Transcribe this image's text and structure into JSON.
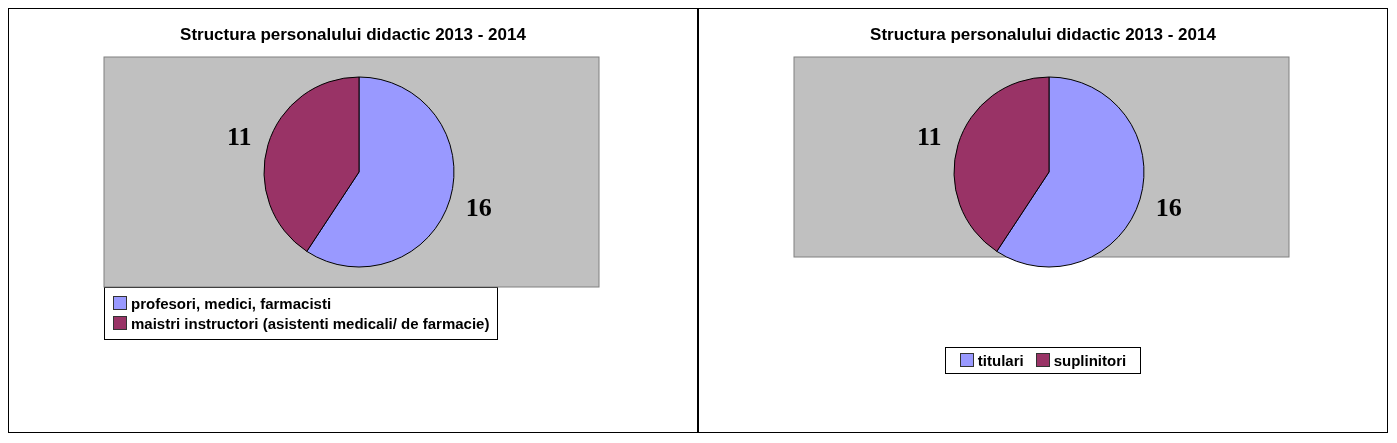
{
  "chart_data": [
    {
      "type": "pie",
      "title": "Structura personalului didactic 2013 - 2014",
      "categories": [
        "profesori, medici, farmacisti",
        "maistri instructori (asistenti medicali/ de farmacie)"
      ],
      "values": [
        16,
        11
      ],
      "colors": [
        "#9999ff",
        "#993366"
      ],
      "data_labels": true,
      "legend": "bottom left"
    },
    {
      "type": "pie",
      "title": "Structura personalului didactic 2013 - 2014",
      "categories": [
        "titulari",
        "suplinitori"
      ],
      "values": [
        16,
        11
      ],
      "colors": [
        "#9999ff",
        "#993366"
      ],
      "data_labels": true,
      "legend": "bottom"
    }
  ]
}
